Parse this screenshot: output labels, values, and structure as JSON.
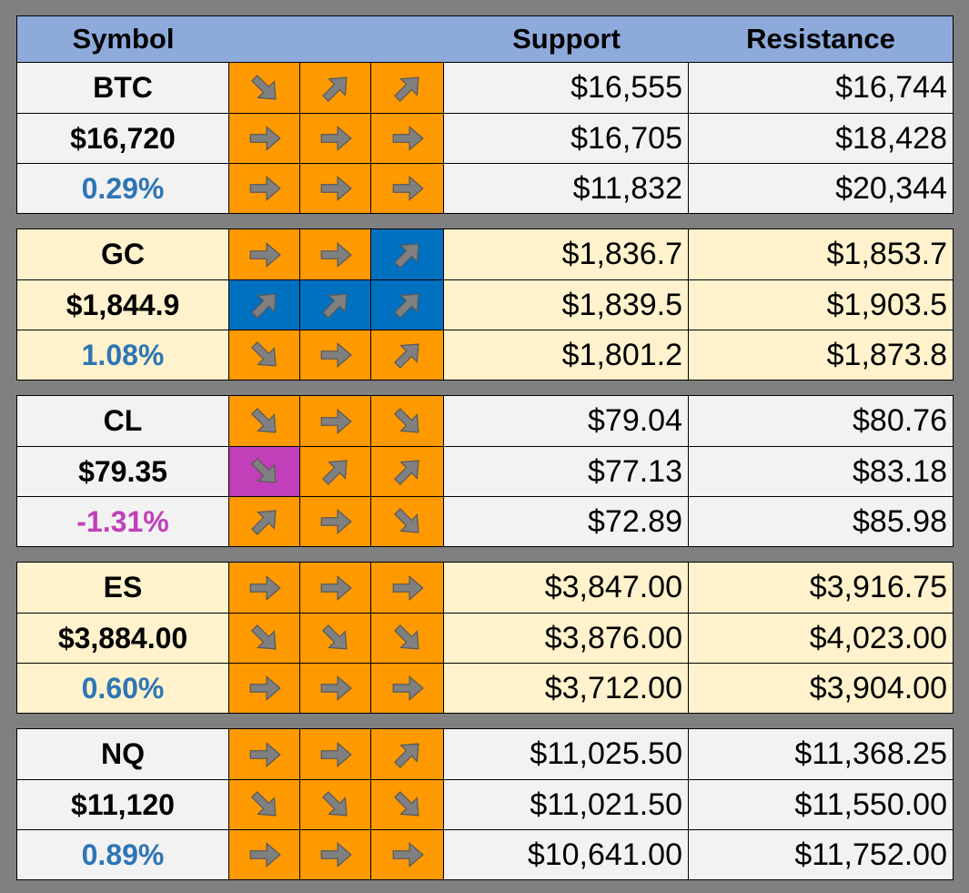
{
  "header": {
    "symbol": "Symbol",
    "support": "Support",
    "resistance": "Resistance"
  },
  "colors": {
    "header_bg": "#8eaadb",
    "orange": "#ff9900",
    "blue": "#0070c0",
    "magenta": "#c13fb9",
    "pct_positive": "#2e75b6",
    "pct_negative": "#c13fb9",
    "row_light": "#f2f2f2",
    "row_cream": "#fff2cc",
    "arrow_gray": "#808080"
  },
  "groups": [
    {
      "style": "light",
      "rows": [
        {
          "label": "BTC",
          "label_type": "symbol",
          "arrows": [
            {
              "dir": "down-right",
              "color": "orange"
            },
            {
              "dir": "up-right",
              "color": "orange"
            },
            {
              "dir": "up-right",
              "color": "orange"
            }
          ],
          "support": "$16,555",
          "resistance": "$16,744"
        },
        {
          "label": "$16,720",
          "label_type": "price",
          "arrows": [
            {
              "dir": "right",
              "color": "orange"
            },
            {
              "dir": "right",
              "color": "orange"
            },
            {
              "dir": "right",
              "color": "orange"
            }
          ],
          "support": "$16,705",
          "resistance": "$18,428"
        },
        {
          "label": "0.29%",
          "label_type": "pct-pos",
          "arrows": [
            {
              "dir": "right",
              "color": "orange"
            },
            {
              "dir": "right",
              "color": "orange"
            },
            {
              "dir": "right",
              "color": "orange"
            }
          ],
          "support": "$11,832",
          "resistance": "$20,344"
        }
      ]
    },
    {
      "style": "cream",
      "rows": [
        {
          "label": "GC",
          "label_type": "symbol",
          "arrows": [
            {
              "dir": "right",
              "color": "orange"
            },
            {
              "dir": "right",
              "color": "orange"
            },
            {
              "dir": "up-right",
              "color": "blue"
            }
          ],
          "support": "$1,836.7",
          "resistance": "$1,853.7"
        },
        {
          "label": "$1,844.9",
          "label_type": "price",
          "arrows": [
            {
              "dir": "up-right",
              "color": "blue"
            },
            {
              "dir": "up-right",
              "color": "blue"
            },
            {
              "dir": "up-right",
              "color": "blue"
            }
          ],
          "support": "$1,839.5",
          "resistance": "$1,903.5"
        },
        {
          "label": "1.08%",
          "label_type": "pct-pos",
          "arrows": [
            {
              "dir": "down-right",
              "color": "orange"
            },
            {
              "dir": "right",
              "color": "orange"
            },
            {
              "dir": "up-right",
              "color": "orange"
            }
          ],
          "support": "$1,801.2",
          "resistance": "$1,873.8"
        }
      ]
    },
    {
      "style": "light",
      "rows": [
        {
          "label": "CL",
          "label_type": "symbol",
          "arrows": [
            {
              "dir": "down-right",
              "color": "orange"
            },
            {
              "dir": "right",
              "color": "orange"
            },
            {
              "dir": "down-right",
              "color": "orange"
            }
          ],
          "support": "$79.04",
          "resistance": "$80.76"
        },
        {
          "label": "$79.35",
          "label_type": "price",
          "arrows": [
            {
              "dir": "down-right",
              "color": "magenta"
            },
            {
              "dir": "up-right",
              "color": "orange"
            },
            {
              "dir": "up-right",
              "color": "orange"
            }
          ],
          "support": "$77.13",
          "resistance": "$83.18"
        },
        {
          "label": "-1.31%",
          "label_type": "pct-neg",
          "arrows": [
            {
              "dir": "up-right",
              "color": "orange"
            },
            {
              "dir": "right",
              "color": "orange"
            },
            {
              "dir": "down-right",
              "color": "orange"
            }
          ],
          "support": "$72.89",
          "resistance": "$85.98"
        }
      ]
    },
    {
      "style": "cream",
      "rows": [
        {
          "label": "ES",
          "label_type": "symbol",
          "arrows": [
            {
              "dir": "right",
              "color": "orange"
            },
            {
              "dir": "right",
              "color": "orange"
            },
            {
              "dir": "right",
              "color": "orange"
            }
          ],
          "support": "$3,847.00",
          "resistance": "$3,916.75"
        },
        {
          "label": "$3,884.00",
          "label_type": "price",
          "arrows": [
            {
              "dir": "down-right",
              "color": "orange"
            },
            {
              "dir": "down-right",
              "color": "orange"
            },
            {
              "dir": "down-right",
              "color": "orange"
            }
          ],
          "support": "$3,876.00",
          "resistance": "$4,023.00"
        },
        {
          "label": "0.60%",
          "label_type": "pct-pos",
          "arrows": [
            {
              "dir": "right",
              "color": "orange"
            },
            {
              "dir": "right",
              "color": "orange"
            },
            {
              "dir": "right",
              "color": "orange"
            }
          ],
          "support": "$3,712.00",
          "resistance": "$3,904.00"
        }
      ]
    },
    {
      "style": "light",
      "rows": [
        {
          "label": "NQ",
          "label_type": "symbol",
          "arrows": [
            {
              "dir": "right",
              "color": "orange"
            },
            {
              "dir": "right",
              "color": "orange"
            },
            {
              "dir": "up-right",
              "color": "orange"
            }
          ],
          "support": "$11,025.50",
          "resistance": "$11,368.25"
        },
        {
          "label": "$11,120",
          "label_type": "price",
          "arrows": [
            {
              "dir": "down-right",
              "color": "orange"
            },
            {
              "dir": "down-right",
              "color": "orange"
            },
            {
              "dir": "down-right",
              "color": "orange"
            }
          ],
          "support": "$11,021.50",
          "resistance": "$11,550.00"
        },
        {
          "label": "0.89%",
          "label_type": "pct-pos",
          "arrows": [
            {
              "dir": "right",
              "color": "orange"
            },
            {
              "dir": "right",
              "color": "orange"
            },
            {
              "dir": "right",
              "color": "orange"
            }
          ],
          "support": "$10,641.00",
          "resistance": "$11,752.00"
        }
      ]
    }
  ]
}
